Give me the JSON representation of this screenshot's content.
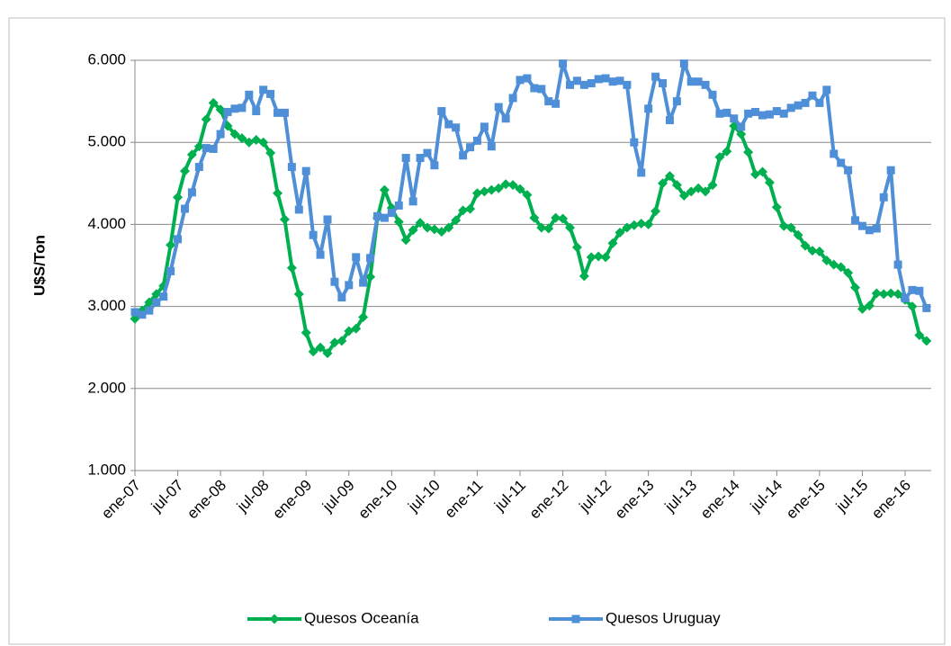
{
  "chart_data": {
    "type": "line",
    "y_label": "U$S/Ton",
    "categories": [
      "ene-07",
      null,
      null,
      null,
      null,
      null,
      "jul-07",
      null,
      null,
      null,
      null,
      null,
      "ene-08",
      null,
      null,
      null,
      null,
      null,
      "jul-08",
      null,
      null,
      null,
      null,
      null,
      "ene-09",
      null,
      null,
      null,
      null,
      null,
      "jul-09",
      null,
      null,
      null,
      null,
      null,
      "ene-10",
      null,
      null,
      null,
      null,
      null,
      "jul-10",
      null,
      null,
      null,
      null,
      null,
      "ene-11",
      null,
      null,
      null,
      null,
      null,
      "jul-11",
      null,
      null,
      null,
      null,
      null,
      "ene-12",
      null,
      null,
      null,
      null,
      null,
      "jul-12",
      null,
      null,
      null,
      null,
      null,
      "ene-13",
      null,
      null,
      null,
      null,
      null,
      "jul-13",
      null,
      null,
      null,
      null,
      null,
      "ene-14",
      null,
      null,
      null,
      null,
      null,
      "jul-14",
      null,
      null,
      null,
      null,
      null,
      "ene-15",
      null,
      null,
      null,
      null,
      null,
      "jul-15",
      null,
      null,
      null,
      null,
      null,
      "ene-16",
      null,
      null,
      null
    ],
    "series": [
      {
        "name": "Quesos Oceanía",
        "color": "#00b050",
        "marker": "diamond",
        "values": [
          2850,
          2950,
          3050,
          3150,
          3250,
          3750,
          4330,
          4650,
          4850,
          4950,
          5280,
          5480,
          5400,
          5200,
          5100,
          5050,
          5000,
          5030,
          5000,
          4870,
          4380,
          4060,
          3470,
          3150,
          2680,
          2450,
          2500,
          2430,
          2560,
          2580,
          2700,
          2730,
          2870,
          3360,
          4080,
          4420,
          4200,
          4030,
          3810,
          3930,
          4020,
          3960,
          3940,
          3910,
          3960,
          4050,
          4170,
          4190,
          4380,
          4400,
          4420,
          4440,
          4490,
          4480,
          4430,
          4360,
          4080,
          3960,
          3950,
          4080,
          4070,
          3960,
          3720,
          3370,
          3600,
          3610,
          3600,
          3770,
          3900,
          3960,
          3990,
          4010,
          4000,
          4160,
          4500,
          4590,
          4480,
          4350,
          4400,
          4440,
          4400,
          4480,
          4820,
          4890,
          5200,
          5100,
          4880,
          4610,
          4640,
          4510,
          4210,
          3980,
          3960,
          3870,
          3740,
          3680,
          3670,
          3560,
          3510,
          3480,
          3410,
          3230,
          2970,
          3010,
          3160,
          3150,
          3160,
          3150,
          3080,
          3000,
          2650,
          2580
        ]
      },
      {
        "name": "Quesos Uruguay",
        "color": "#4f8fd8",
        "marker": "square",
        "values": [
          2930,
          2900,
          2950,
          3050,
          3120,
          3430,
          3820,
          4190,
          4390,
          4700,
          4930,
          4920,
          5100,
          5370,
          5410,
          5420,
          5580,
          5380,
          5640,
          5590,
          5360,
          5360,
          4700,
          4180,
          4650,
          3870,
          3630,
          4060,
          3300,
          3110,
          3260,
          3600,
          3290,
          3590,
          4100,
          4080,
          4140,
          4230,
          4810,
          4280,
          4810,
          4870,
          4720,
          5380,
          5220,
          5180,
          4840,
          4940,
          5020,
          5190,
          4950,
          5430,
          5290,
          5540,
          5760,
          5780,
          5660,
          5650,
          5500,
          5470,
          5960,
          5700,
          5750,
          5700,
          5720,
          5770,
          5780,
          5740,
          5750,
          5700,
          5000,
          4630,
          5410,
          5800,
          5720,
          5270,
          5500,
          5960,
          5740,
          5740,
          5700,
          5580,
          5350,
          5360,
          5290,
          5190,
          5350,
          5370,
          5330,
          5340,
          5380,
          5350,
          5420,
          5450,
          5480,
          5570,
          5480,
          5640,
          4860,
          4750,
          4660,
          4050,
          3980,
          3930,
          3950,
          4330,
          4660,
          3510,
          3100,
          3200,
          3190,
          2980
        ]
      }
    ],
    "ylim": [
      1000,
      6000
    ],
    "yticks": [
      {
        "value": 1000,
        "label": "1.000"
      },
      {
        "value": 2000,
        "label": "2.000"
      },
      {
        "value": 3000,
        "label": "3.000"
      },
      {
        "value": 4000,
        "label": "4.000"
      },
      {
        "value": 5000,
        "label": "5.000"
      },
      {
        "value": 6000,
        "label": "6.000"
      }
    ],
    "grid": true,
    "legend": "bottom"
  }
}
